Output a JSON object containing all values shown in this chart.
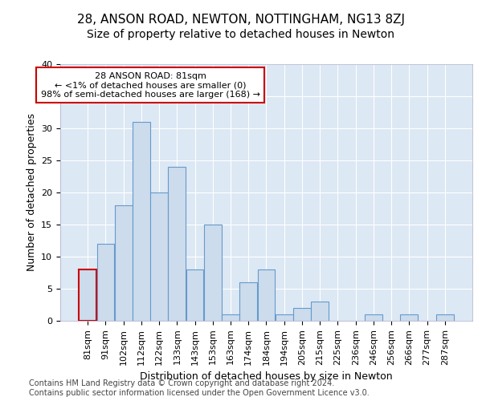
{
  "title1": "28, ANSON ROAD, NEWTON, NOTTINGHAM, NG13 8ZJ",
  "title2": "Size of property relative to detached houses in Newton",
  "xlabel": "Distribution of detached houses by size in Newton",
  "ylabel": "Number of detached properties",
  "categories": [
    "81sqm",
    "91sqm",
    "102sqm",
    "112sqm",
    "122sqm",
    "133sqm",
    "143sqm",
    "153sqm",
    "163sqm",
    "174sqm",
    "184sqm",
    "194sqm",
    "205sqm",
    "215sqm",
    "225sqm",
    "236sqm",
    "246sqm",
    "256sqm",
    "266sqm",
    "277sqm",
    "287sqm"
  ],
  "values": [
    8,
    12,
    18,
    31,
    20,
    24,
    8,
    15,
    1,
    6,
    8,
    1,
    2,
    3,
    0,
    0,
    1,
    0,
    1,
    0,
    1
  ],
  "bar_color": "#ccdcec",
  "bar_edge_color": "#6699cc",
  "highlight_bar_index": 0,
  "highlight_edge_color": "#cc0000",
  "annotation_box_text": "28 ANSON ROAD: 81sqm\n← <1% of detached houses are smaller (0)\n98% of semi-detached houses are larger (168) →",
  "annotation_box_edge_color": "#cc0000",
  "annotation_box_face_color": "#ffffff",
  "ylim": [
    0,
    40
  ],
  "yticks": [
    0,
    5,
    10,
    15,
    20,
    25,
    30,
    35,
    40
  ],
  "bg_color": "#dce8f4",
  "footer_line1": "Contains HM Land Registry data © Crown copyright and database right 2024.",
  "footer_line2": "Contains public sector information licensed under the Open Government Licence v3.0.",
  "title1_fontsize": 11,
  "title2_fontsize": 10,
  "xlabel_fontsize": 9,
  "ylabel_fontsize": 9,
  "tick_fontsize": 8,
  "annotation_fontsize": 8,
  "footer_fontsize": 7
}
